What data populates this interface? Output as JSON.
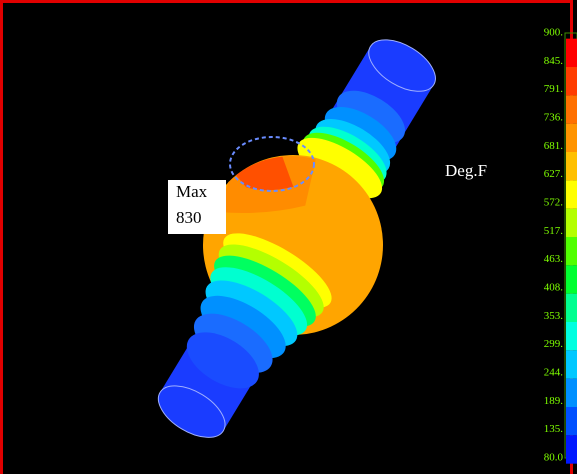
{
  "legend": {
    "unit": "Deg.F",
    "labels": [
      "900.",
      "845.",
      "791.",
      "736.",
      "681.",
      "627.",
      "572.",
      "517.",
      "463.",
      "408.",
      "353.",
      "299.",
      "244.",
      "189.",
      "135.",
      "80.0"
    ],
    "colors": [
      "#ff0000",
      "#ff3c00",
      "#ff7000",
      "#ff9400",
      "#ffc000",
      "#ffff00",
      "#b4ff00",
      "#50ff00",
      "#00ff30",
      "#00ff90",
      "#00ffe0",
      "#00c8ff",
      "#0090ff",
      "#0050ff",
      "#0018ff"
    ]
  },
  "annotation": {
    "lines": [
      "Max",
      "830"
    ]
  }
}
